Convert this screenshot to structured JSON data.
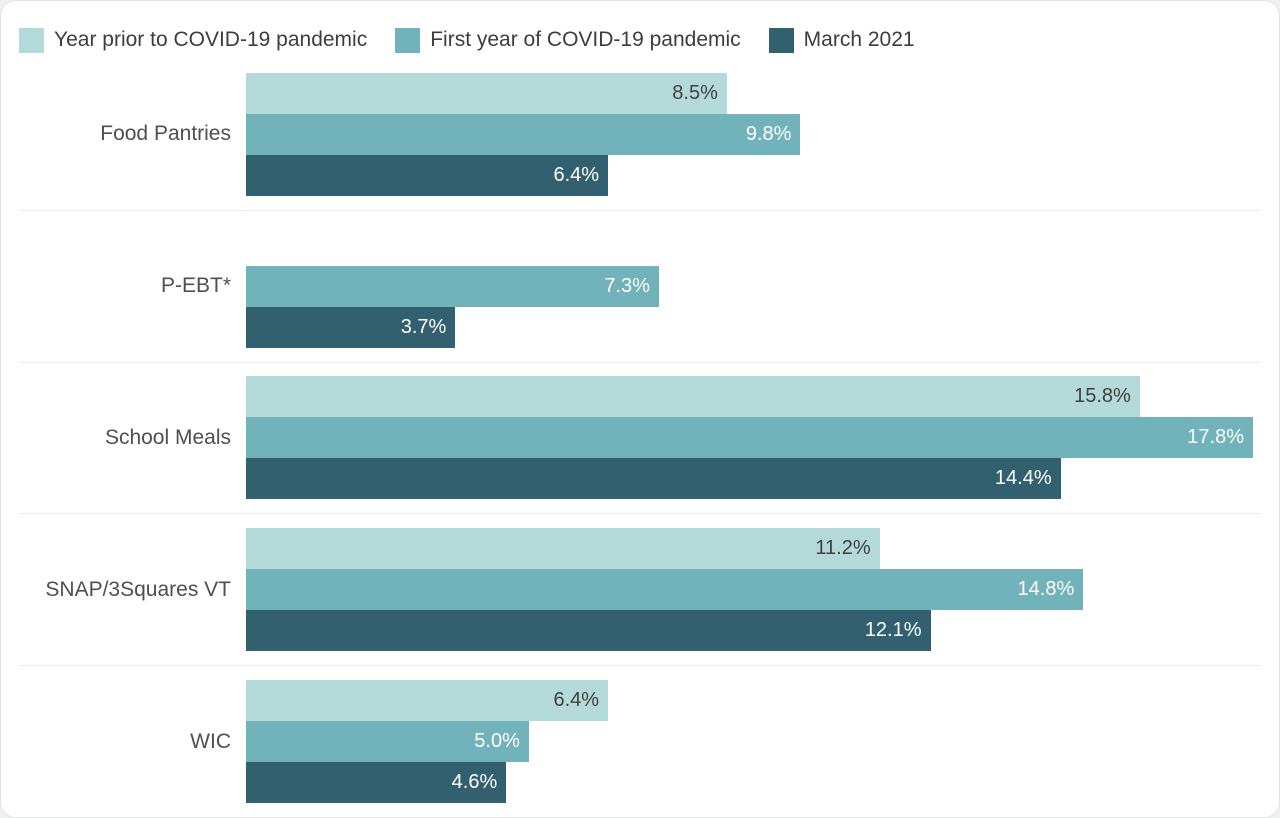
{
  "page": {
    "background_color": "#eef0ef",
    "card_background_color": "#ffffff",
    "separator_color": "#ececec"
  },
  "legend": {
    "position": "top",
    "items": [
      {
        "label": "Year prior to COVID-19 pandemic",
        "color": "#b3dad8"
      },
      {
        "label": "First year of COVID-19 pandemic",
        "color": "#72b2bb"
      },
      {
        "label": "March 2021",
        "color": "#32606e"
      }
    ]
  },
  "chart_data": {
    "type": "bar",
    "orientation": "horizontal",
    "title": "",
    "xlabel": "",
    "ylabel": "",
    "xlim": [
      0,
      17.8
    ],
    "grid": "horizontal-row-separators",
    "legend_position": "top",
    "value_suffix": "%",
    "categories": [
      "Food Pantries",
      "P-EBT*",
      "School Meals",
      "SNAP/3Squares VT",
      "WIC"
    ],
    "series": [
      {
        "name": "Year prior to COVID-19 pandemic",
        "color": "#b3dad8",
        "label_color": "#3f3f3f",
        "values": [
          8.5,
          null,
          15.8,
          11.2,
          6.4
        ],
        "labels": [
          "8.5%",
          "",
          "15.8%",
          "11.2%",
          "6.4%"
        ]
      },
      {
        "name": "First year of COVID-19 pandemic",
        "color": "#72b2bb",
        "label_color": "#ffffff",
        "values": [
          9.8,
          7.3,
          17.8,
          14.8,
          5.0
        ],
        "labels": [
          "9.8%",
          "7.3%",
          "17.8%",
          "14.8%",
          "5.0%"
        ]
      },
      {
        "name": "March 2021",
        "color": "#32606e",
        "label_color": "#ffffff",
        "values": [
          6.4,
          3.7,
          14.4,
          12.1,
          4.6
        ],
        "labels": [
          "6.4%",
          "3.7%",
          "14.4%",
          "12.1%",
          "4.6%"
        ]
      }
    ]
  }
}
